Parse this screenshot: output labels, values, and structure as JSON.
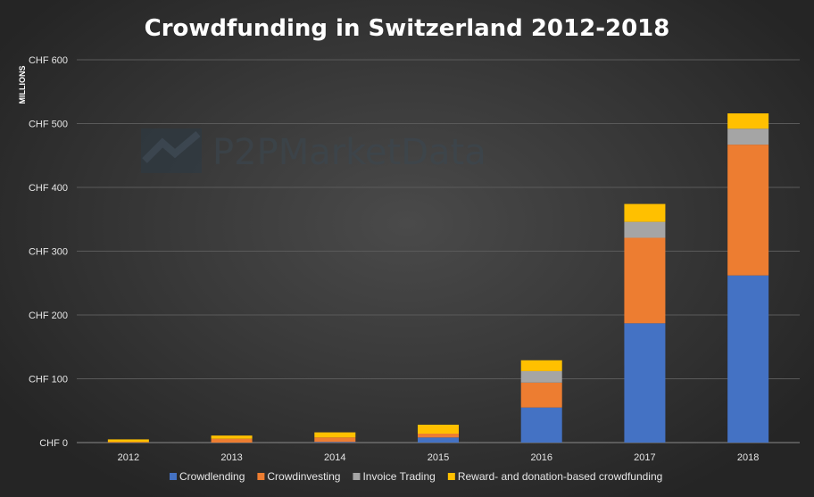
{
  "chart_data": {
    "type": "bar",
    "stacked": true,
    "title": "Crowdfunding in Switzerland 2012-2018",
    "ylabel": "MILLIONS",
    "categories": [
      "2012",
      "2013",
      "2014",
      "2015",
      "2016",
      "2017",
      "2018"
    ],
    "ylim": [
      0,
      600
    ],
    "yticks": [
      "CHF 0",
      "CHF 100",
      "CHF 200",
      "CHF 300",
      "CHF 400",
      "CHF 500",
      "CHF 600"
    ],
    "grid": true,
    "legend_position": "bottom",
    "series": [
      {
        "name": "Crowdlending",
        "color": "#4472c4",
        "values": [
          0,
          0,
          1,
          8,
          55,
          187,
          262
        ]
      },
      {
        "name": "Crowdinvesting",
        "color": "#ed7d31",
        "values": [
          1,
          6,
          7,
          6,
          39,
          134,
          205
        ]
      },
      {
        "name": "Invoice Trading",
        "color": "#a5a5a5",
        "values": [
          0,
          0,
          0,
          0,
          18,
          25,
          25
        ]
      },
      {
        "name": "Reward- and donation-based crowdfunding",
        "color": "#ffc000",
        "values": [
          4,
          5,
          8,
          14,
          17,
          28,
          24
        ]
      }
    ]
  },
  "watermark": "P2PMarketData"
}
